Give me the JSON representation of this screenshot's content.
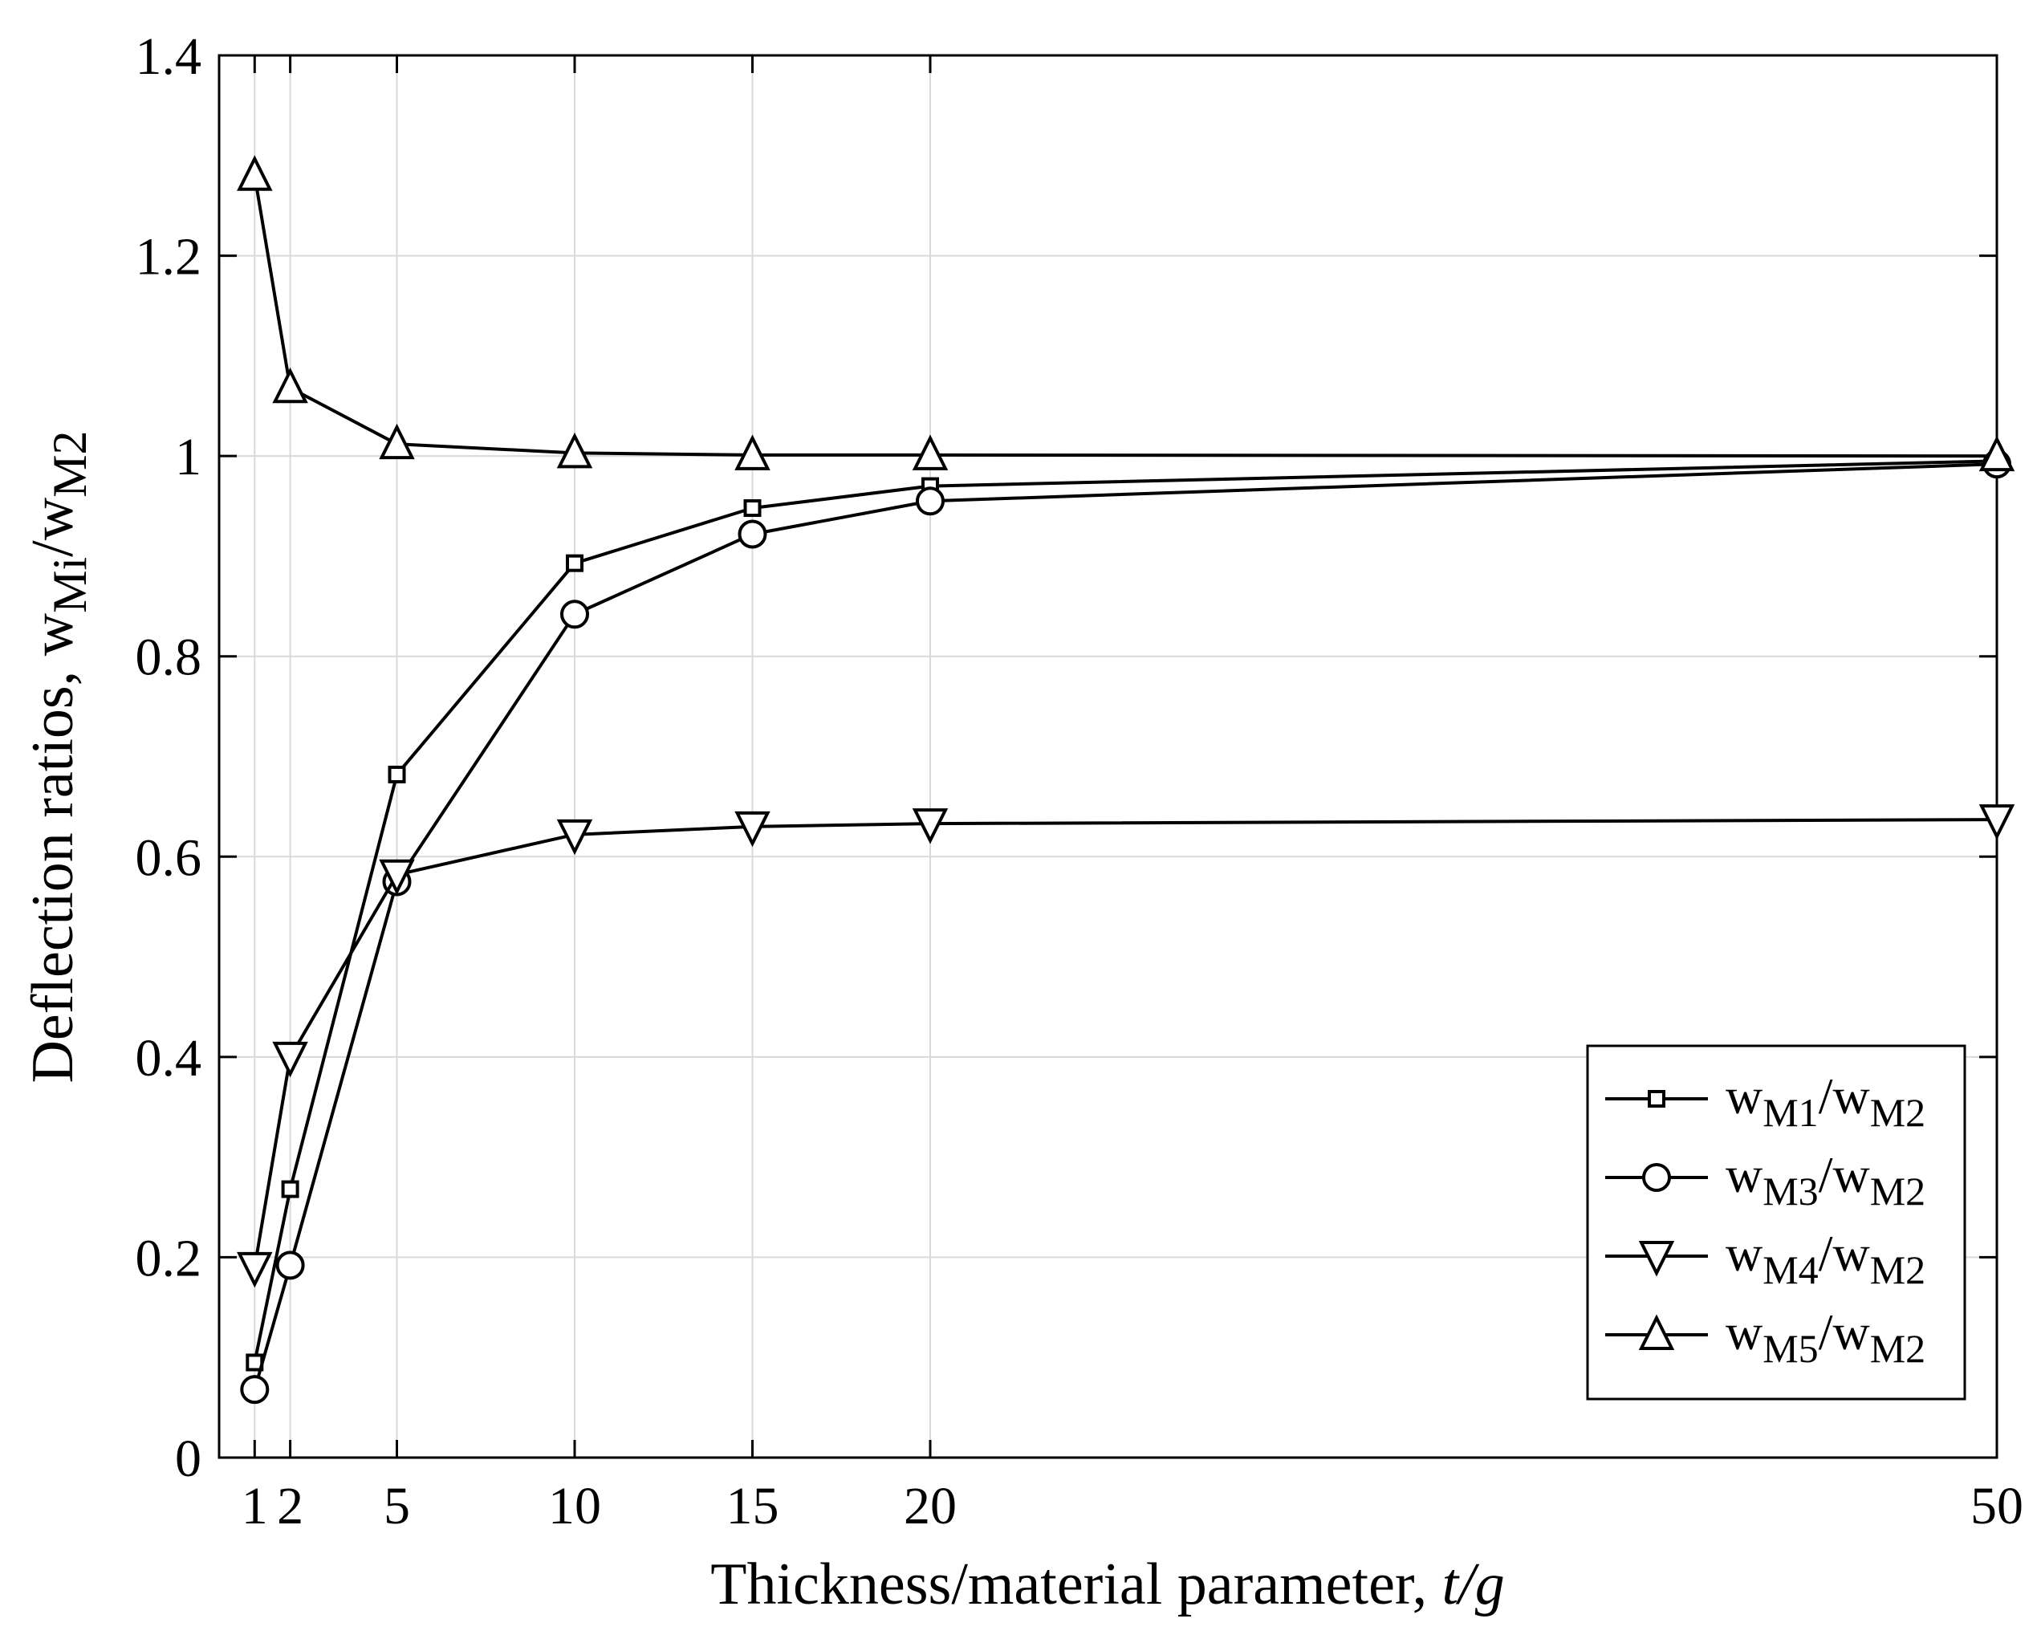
{
  "chart_data": {
    "type": "line",
    "title": "",
    "xlabel": {
      "main": "Thickness/material parameter, ",
      "italic": "t/g"
    },
    "ylabel": {
      "base1": "Deflection ratios, w",
      "sub1": "Mi",
      "base2": "/w",
      "sub2": "M2"
    },
    "xticks": [
      1,
      2,
      5,
      10,
      15,
      20,
      50
    ],
    "xtick_labels": [
      "1",
      "2",
      "5",
      "10",
      "15",
      "20",
      "50"
    ],
    "yticks": [
      0,
      0.2,
      0.4,
      0.6,
      0.8,
      1,
      1.2,
      1.4
    ],
    "ytick_labels": [
      "0",
      "0.2",
      "0.4",
      "0.6",
      "0.8",
      "1",
      "1.2",
      "1.4"
    ],
    "xlim": [
      0,
      50
    ],
    "ylim": [
      0,
      1.4
    ],
    "grid": true,
    "legend_position": "bottom-right",
    "line_color": "#000000",
    "x": [
      1,
      2,
      5,
      10,
      15,
      20,
      50
    ],
    "series": [
      {
        "name": "wM1/wM2",
        "label_parts": [
          "w",
          "M1",
          "/w",
          "M2"
        ],
        "marker": "square",
        "values": [
          0.095,
          0.268,
          0.682,
          0.893,
          0.948,
          0.97,
          0.995
        ]
      },
      {
        "name": "wM3/wM2",
        "label_parts": [
          "w",
          "M3",
          "/w",
          "M2"
        ],
        "marker": "circle",
        "values": [
          0.068,
          0.192,
          0.575,
          0.842,
          0.922,
          0.955,
          0.992
        ]
      },
      {
        "name": "wM4/wM2",
        "label_parts": [
          "w",
          "M4",
          "/w",
          "M2"
        ],
        "marker": "triangle-down",
        "values": [
          0.19,
          0.4,
          0.582,
          0.622,
          0.63,
          0.633,
          0.637
        ]
      },
      {
        "name": "wM5/wM2",
        "label_parts": [
          "w",
          "M5",
          "/w",
          "M2"
        ],
        "marker": "triangle-up",
        "values": [
          1.28,
          1.068,
          1.012,
          1.003,
          1.001,
          1.001,
          1.0
        ]
      }
    ]
  }
}
